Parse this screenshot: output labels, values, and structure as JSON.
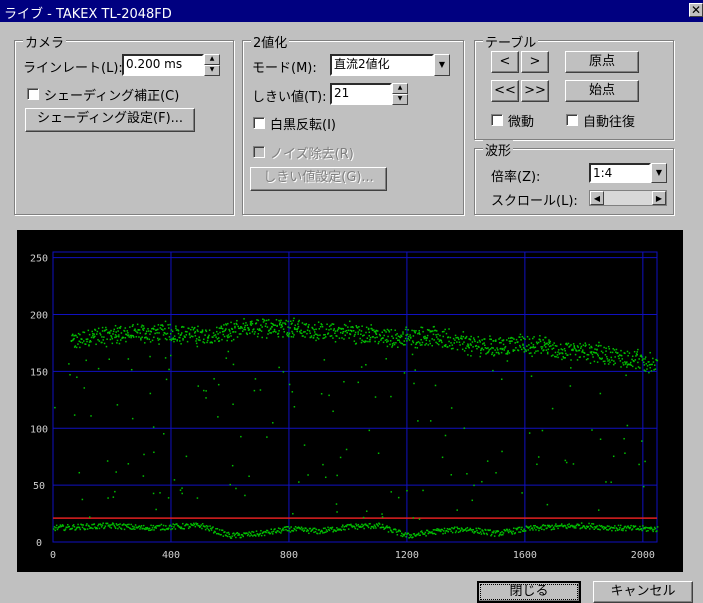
{
  "window": {
    "title": "ライブ - TAKEX TL-2048FD",
    "close": "✕"
  },
  "camera": {
    "group_label": "カメラ",
    "line_rate_label": "ラインレート(L):",
    "line_rate_value": "0.200 ms",
    "shading_correction_label": "シェーディング補正(C)",
    "shading_settings_button": "シェーディング設定(F)..."
  },
  "binarize": {
    "group_label": "2値化",
    "mode_label": "モード(M):",
    "mode_value": "直流2値化",
    "threshold_label": "しきい値(T):",
    "threshold_value": "21",
    "invert_label": "白黒反転(I)",
    "noise_label": "ノイズ除去(R)",
    "threshold_settings_button": "しきい値設定(G)..."
  },
  "table": {
    "group_label": "テーブル",
    "left": "<",
    "right": ">",
    "fast_left": "<<",
    "fast_right": ">>",
    "origin_button": "原点",
    "start_button": "始点",
    "jog_label": "微動",
    "auto_reciprocate_label": "自動往復"
  },
  "waveform": {
    "group_label": "波形",
    "zoom_label": "倍率(Z):",
    "zoom_value": "1:4",
    "scroll_label": "スクロール(L):"
  },
  "footer": {
    "close_button": "閉じる",
    "cancel_button": "キャンセル"
  },
  "chart_data": {
    "type": "scatter",
    "title": "",
    "xlabel": "",
    "ylabel": "",
    "xlim": [
      0,
      2048
    ],
    "ylim": [
      0,
      255
    ],
    "xticks": [
      0,
      400,
      800,
      1200,
      1600,
      2000
    ],
    "yticks": [
      0,
      50,
      100,
      150,
      200,
      250
    ],
    "threshold": 21,
    "grid": true,
    "colors": {
      "signal": "#00c000",
      "threshold": "#e02020",
      "grid": "#1010c0",
      "background": "#000000"
    },
    "signal_profile": [
      [
        0,
        172
      ],
      [
        60,
        175
      ],
      [
        100,
        180
      ],
      [
        200,
        183
      ],
      [
        300,
        184
      ],
      [
        400,
        185
      ],
      [
        500,
        182
      ],
      [
        600,
        185
      ],
      [
        700,
        190
      ],
      [
        800,
        190
      ],
      [
        900,
        186
      ],
      [
        1000,
        186
      ],
      [
        1100,
        181
      ],
      [
        1200,
        181
      ],
      [
        1300,
        180
      ],
      [
        1400,
        175
      ],
      [
        1500,
        172
      ],
      [
        1600,
        175
      ],
      [
        1700,
        170
      ],
      [
        1800,
        168
      ],
      [
        1900,
        165
      ],
      [
        2048,
        157
      ]
    ],
    "baseline_profile": [
      [
        0,
        13
      ],
      [
        100,
        14
      ],
      [
        200,
        15
      ],
      [
        300,
        13
      ],
      [
        400,
        14
      ],
      [
        500,
        15
      ],
      [
        600,
        6
      ],
      [
        700,
        8
      ],
      [
        800,
        12
      ],
      [
        900,
        10
      ],
      [
        1000,
        14
      ],
      [
        1100,
        15
      ],
      [
        1200,
        6
      ],
      [
        1300,
        10
      ],
      [
        1400,
        12
      ],
      [
        1500,
        8
      ],
      [
        1600,
        12
      ],
      [
        1700,
        14
      ],
      [
        1800,
        15
      ],
      [
        1900,
        13
      ],
      [
        2048,
        12
      ]
    ]
  }
}
